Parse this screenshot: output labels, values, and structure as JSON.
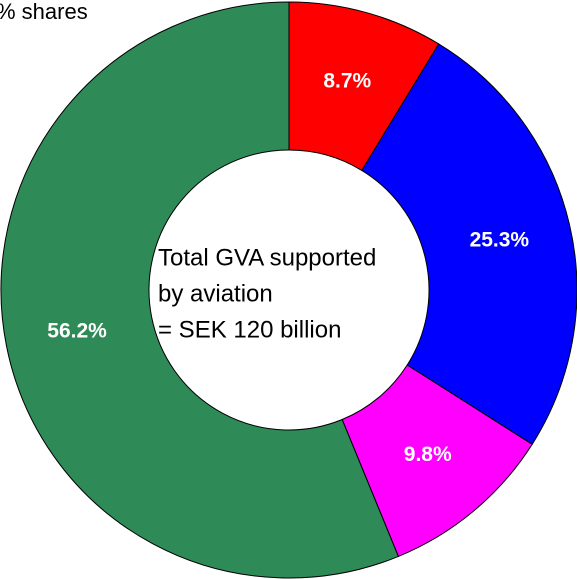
{
  "chart_data": {
    "type": "pie",
    "title": "% shares",
    "values": [
      8.7,
      25.3,
      9.8,
      56.2
    ],
    "value_labels": [
      "8.7%",
      "25.3%",
      "9.8%",
      "56.2%"
    ],
    "colors": [
      "#ff0000",
      "#0000ff",
      "#ff00ff",
      "#2e8b57"
    ],
    "annotations": [
      "Total GVA supported",
      "by aviation",
      "= SEK 120 billion"
    ]
  }
}
